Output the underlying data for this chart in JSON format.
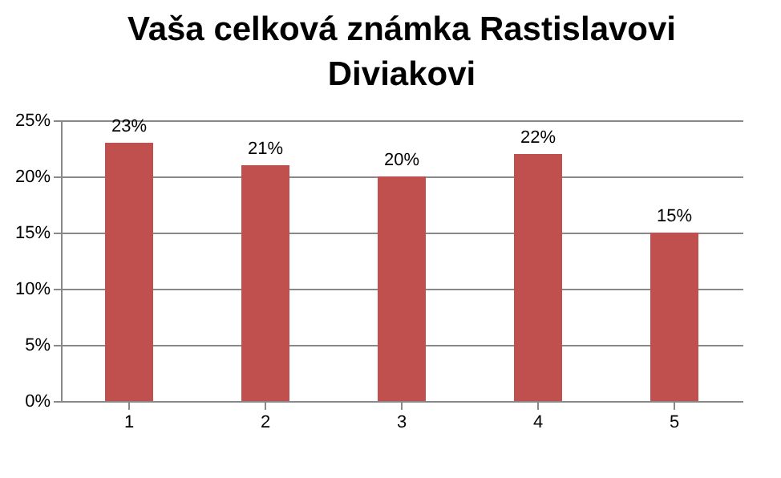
{
  "chart_data": {
    "type": "bar",
    "title": "Vaša celková známka Rastislavovi Diviakovi",
    "categories": [
      "1",
      "2",
      "3",
      "4",
      "5"
    ],
    "values": [
      23,
      21,
      20,
      22,
      15
    ],
    "value_labels": [
      "23%",
      "21%",
      "20%",
      "22%",
      "15%"
    ],
    "color": "#c0504d",
    "ylim": [
      0,
      25
    ],
    "yticks": [
      {
        "value": 0,
        "label": "0%"
      },
      {
        "value": 5,
        "label": "5%"
      },
      {
        "value": 10,
        "label": "10%"
      },
      {
        "value": 15,
        "label": "15%"
      },
      {
        "value": 20,
        "label": "20%"
      },
      {
        "value": 25,
        "label": "25%"
      }
    ],
    "grid": "y"
  }
}
